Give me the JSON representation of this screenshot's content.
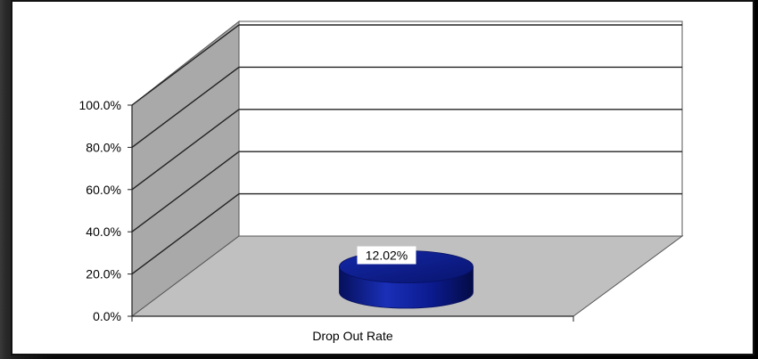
{
  "chart_data": {
    "type": "bar",
    "subtype": "3d-cylinder",
    "categories": [
      "Drop Out Rate"
    ],
    "values": [
      12.02
    ],
    "data_labels": [
      "12.02%"
    ],
    "yticks": [
      "0.0%",
      "20.0%",
      "40.0%",
      "60.0%",
      "80.0%",
      "100.0%"
    ],
    "ylim": [
      0,
      100
    ],
    "title": "",
    "xlabel": "",
    "ylabel": "",
    "grid": true,
    "colors": {
      "series": "#0b1a8c",
      "floor": "#c0c0c0",
      "side_wall": "#a9a9a9",
      "back_wall": "#ffffff"
    }
  }
}
